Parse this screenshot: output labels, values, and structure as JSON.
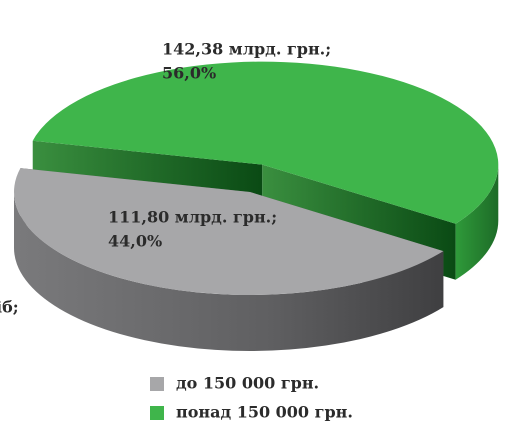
{
  "chart_data": {
    "type": "pie",
    "categories": [
      "до 150 000 грн.",
      "понад 150 000 грн."
    ],
    "values": [
      44.0,
      56.0
    ],
    "value_labels": [
      "44,0%",
      "56,0%"
    ],
    "amount_labels": [
      "111,80 млрд. грн.;",
      "142,38 млрд. грн.;"
    ],
    "colors": [
      "#a7a7a9",
      "#3fb54b"
    ],
    "annotations": [
      "іб;"
    ],
    "legend": "bottom"
  }
}
